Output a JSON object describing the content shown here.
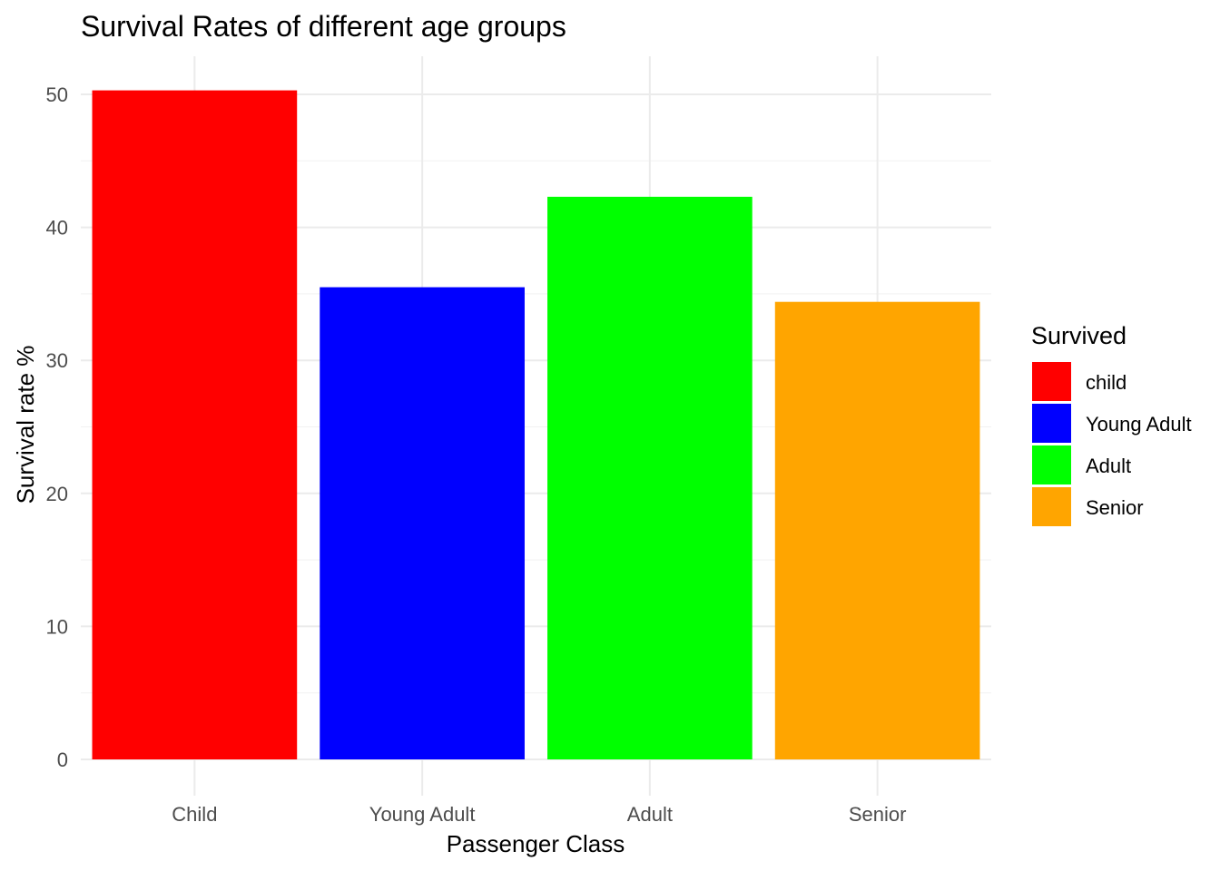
{
  "chart_data": {
    "type": "bar",
    "title": "Survival Rates of different age groups",
    "xlabel": "Passenger Class",
    "ylabel": "Survival rate %",
    "categories": [
      "Child",
      "Young Adult",
      "Adult",
      "Senior"
    ],
    "values": [
      50.3,
      35.5,
      42.3,
      34.4
    ],
    "colors": [
      "#ff0000",
      "#0000ff",
      "#00ff00",
      "#ffa500"
    ],
    "yticks": [
      0,
      10,
      20,
      30,
      40,
      50
    ],
    "ylim": [
      0,
      52.9
    ],
    "grid": true,
    "legend": {
      "title": "Survived",
      "position": "right",
      "entries": [
        "child",
        "Young Adult",
        "Adult",
        "Senior"
      ]
    }
  }
}
